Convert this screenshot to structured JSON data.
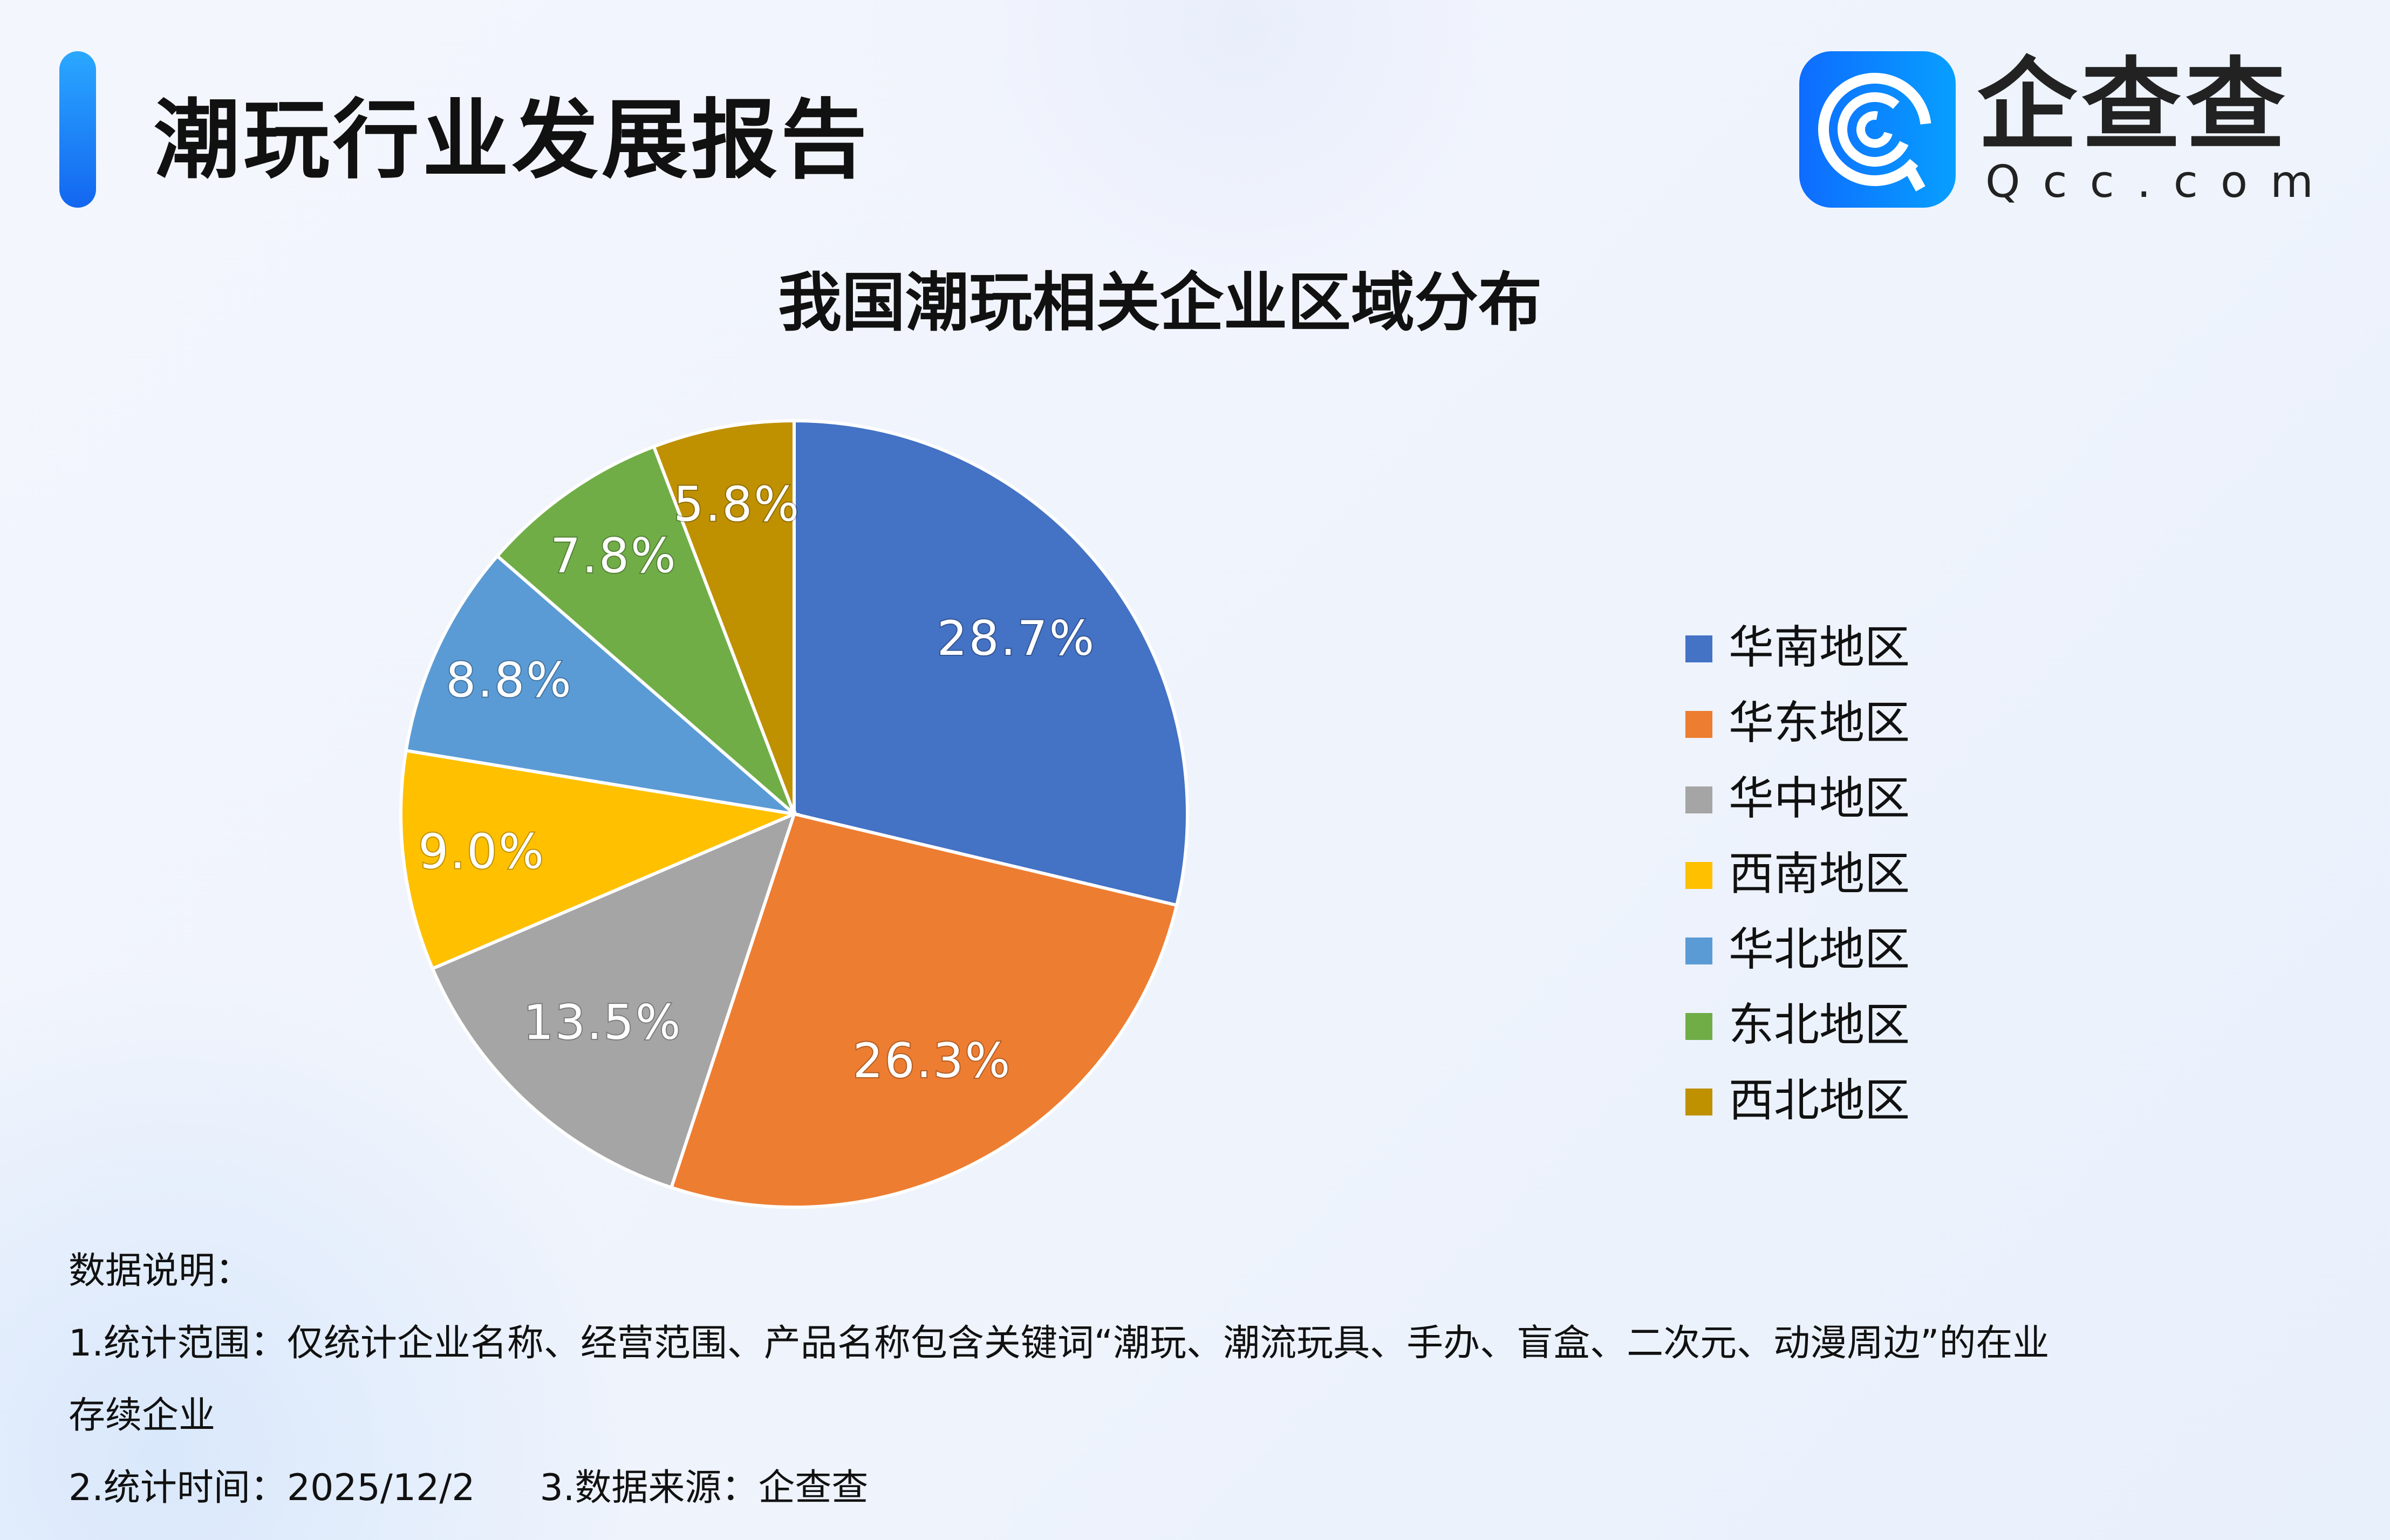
{
  "header": {
    "title": "潮玩行业发展报告"
  },
  "logo": {
    "name": "企查查",
    "domain": "Qcc.com",
    "icon": "qcc-q-logo-icon",
    "color": "#0e6cff"
  },
  "chart_data": {
    "type": "pie",
    "title": "我国潮玩相关企业区域分布",
    "categories": [
      "华南地区",
      "华东地区",
      "华中地区",
      "西南地区",
      "华北地区",
      "东北地区",
      "西北地区"
    ],
    "values": [
      28.7,
      26.3,
      13.5,
      9.0,
      8.8,
      7.8,
      5.8
    ],
    "data_labels": [
      "28.7%",
      "26.3%",
      "13.5%",
      "9.0%",
      "8.8%",
      "7.8%",
      "5.8%"
    ],
    "colors": [
      "#4472C4",
      "#ED7D31",
      "#A5A5A5",
      "#FFC000",
      "#5B9BD5",
      "#70AD47",
      "#BF9000"
    ],
    "start": "12 o'clock",
    "direction": "clockwise",
    "legend": "right"
  },
  "notes": {
    "heading": "数据说明：",
    "line1": "1.统计范围：仅统计企业名称、经营范围、产品名称包含关键词“潮玩、潮流玩具、手办、盲盒、二次元、动漫周边”的在业",
    "line1b": "存续企业",
    "line2": "2.统计时间：2025/12/2",
    "line3": "3.数据来源：企查查"
  }
}
